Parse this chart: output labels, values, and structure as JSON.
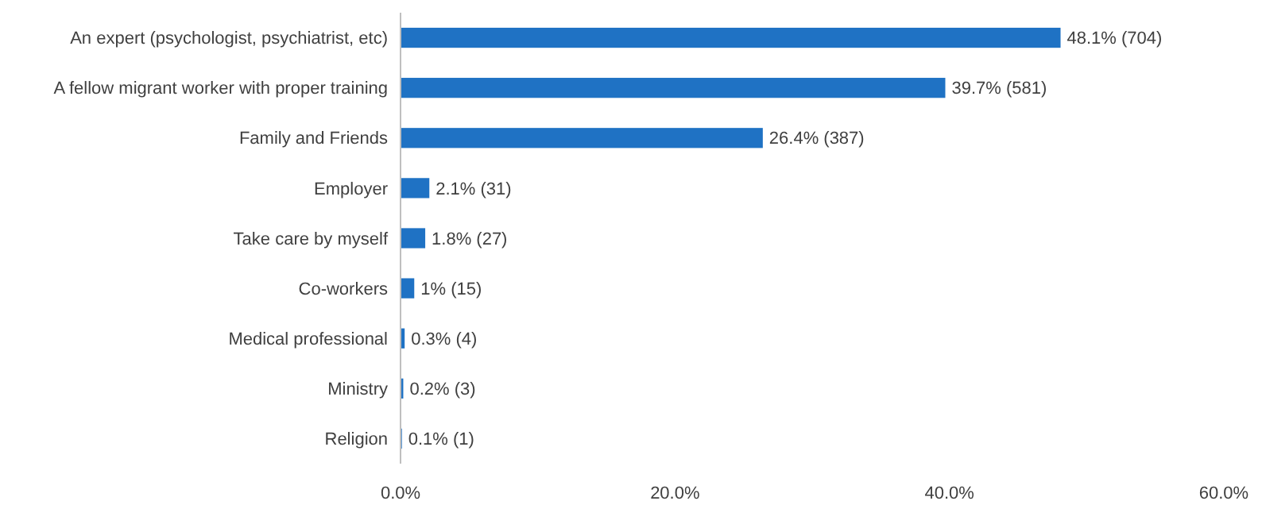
{
  "chart_data": {
    "type": "bar",
    "orientation": "horizontal",
    "categories": [
      "An expert (psychologist, psychiatrist, etc)",
      "A fellow migrant worker with proper training",
      "Family and Friends",
      "Employer",
      "Take care by myself",
      "Co-workers",
      "Medical professional",
      "Ministry",
      "Religion"
    ],
    "values": [
      48.1,
      39.7,
      26.4,
      2.1,
      1.8,
      1,
      0.3,
      0.2,
      0.1
    ],
    "value_labels": [
      "48.1% (704)",
      "39.7% (581)",
      "26.4% (387)",
      "2.1% (31)",
      "1.8% (27)",
      "1% (15)",
      "0.3% (4)",
      "0.2% (3)",
      "0.1% (1)"
    ],
    "color": "#1f72c4",
    "xlim": [
      0,
      60
    ],
    "xticks": [
      {
        "value": 0,
        "label": "0.0%"
      },
      {
        "value": 20,
        "label": "20.0%"
      },
      {
        "value": 40,
        "label": "40.0%"
      },
      {
        "value": 60,
        "label": "60.0%"
      }
    ],
    "grid": false
  }
}
